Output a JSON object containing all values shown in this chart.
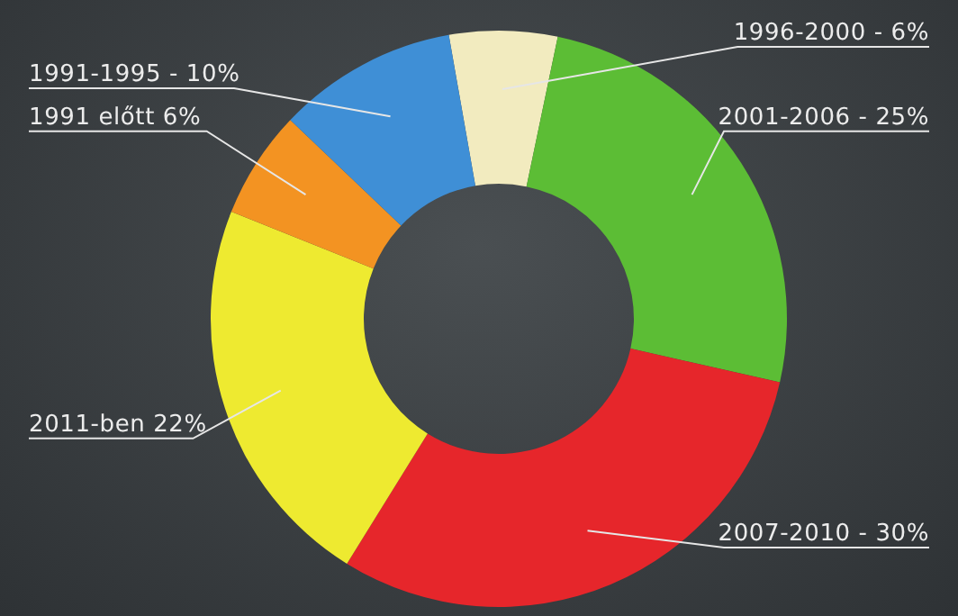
{
  "chart_data": {
    "type": "donut",
    "categories": [
      "1996-2000 -",
      "2001-2006 -",
      "2007-2010 -",
      "2011-ben",
      "1991 előtt",
      "1991-1995 -"
    ],
    "values": [
      6,
      25,
      30,
      22,
      6,
      10
    ],
    "colors": [
      "#f2ebbf",
      "#5cbd35",
      "#e6262b",
      "#eeea30",
      "#f39322",
      "#3f8fd6"
    ],
    "value_labels": [
      "6%",
      "25%",
      "30%",
      "22%",
      "6%",
      "10%"
    ],
    "legend": false
  }
}
